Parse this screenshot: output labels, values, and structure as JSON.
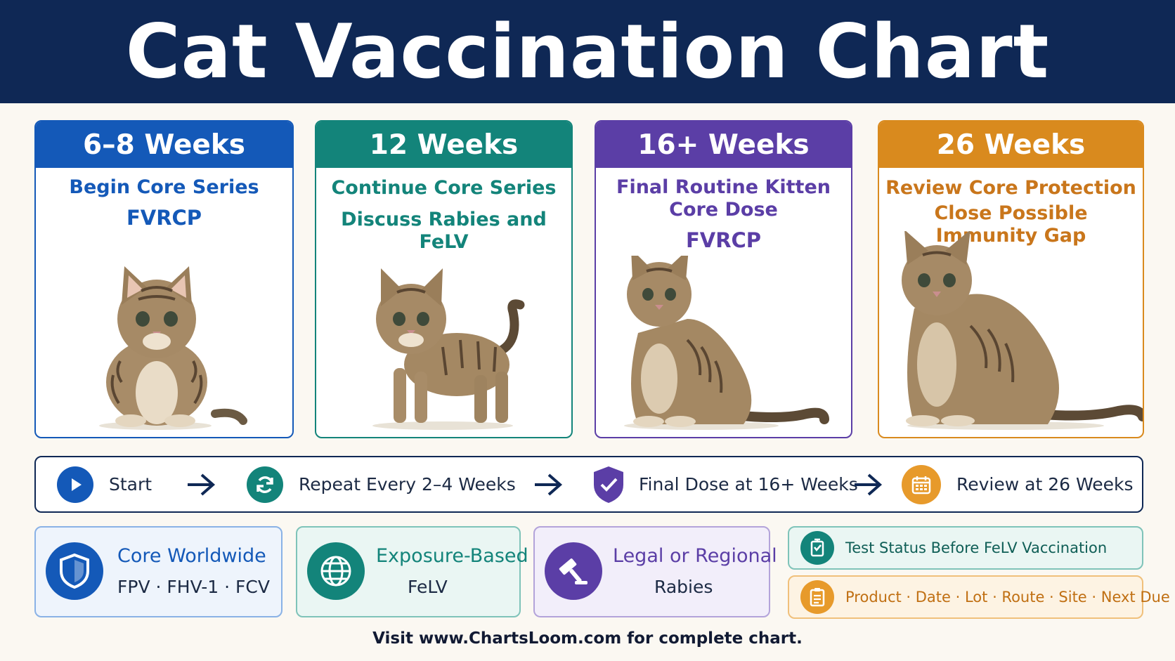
{
  "title": "Cat Vaccination Chart",
  "stages": [
    {
      "heading": "6–8 Weeks",
      "line1": "Begin Core Series",
      "line2": "FVRCP",
      "line3": ""
    },
    {
      "heading": "12 Weeks",
      "line1": "Continue Core Series",
      "line2": "Discuss Rabies and FeLV",
      "line3": ""
    },
    {
      "heading": "16+ Weeks",
      "line1": "Final Routine Kitten",
      "line2": "Core Dose",
      "line3": "FVRCP"
    },
    {
      "heading": "26 Weeks",
      "line1": "Review Core Protection",
      "line2": "Close Possible",
      "line3": "Immunity Gap"
    }
  ],
  "flow": [
    "Start",
    "Repeat Every 2–4 Weeks",
    "Final Dose at 16+ Weeks",
    "Review at 26 Weeks"
  ],
  "categories": [
    {
      "title": "Core Worldwide",
      "detail": "FPV · FHV-1 · FCV"
    },
    {
      "title": "Exposure-Based",
      "detail": "FeLV"
    },
    {
      "title": "Legal or Regional",
      "detail": "Rabies"
    }
  ],
  "notes": [
    "Test Status Before FeLV Vaccination",
    "Product · Date · Lot · Route · Site · Next Due"
  ],
  "footer": "Visit www.ChartsLoom.com for complete chart.",
  "colors": {
    "navy": "#0f2855",
    "blue": "#1459b8",
    "teal": "#13847a",
    "purple": "#5b3ea6",
    "orange": "#d98a1e"
  },
  "icons": [
    "play-icon",
    "refresh-icon",
    "shield-check-icon",
    "calendar-icon",
    "shield-icon",
    "globe-icon",
    "gavel-icon",
    "vaccine-icon",
    "clipboard-icon",
    "arrow-right-icon"
  ]
}
